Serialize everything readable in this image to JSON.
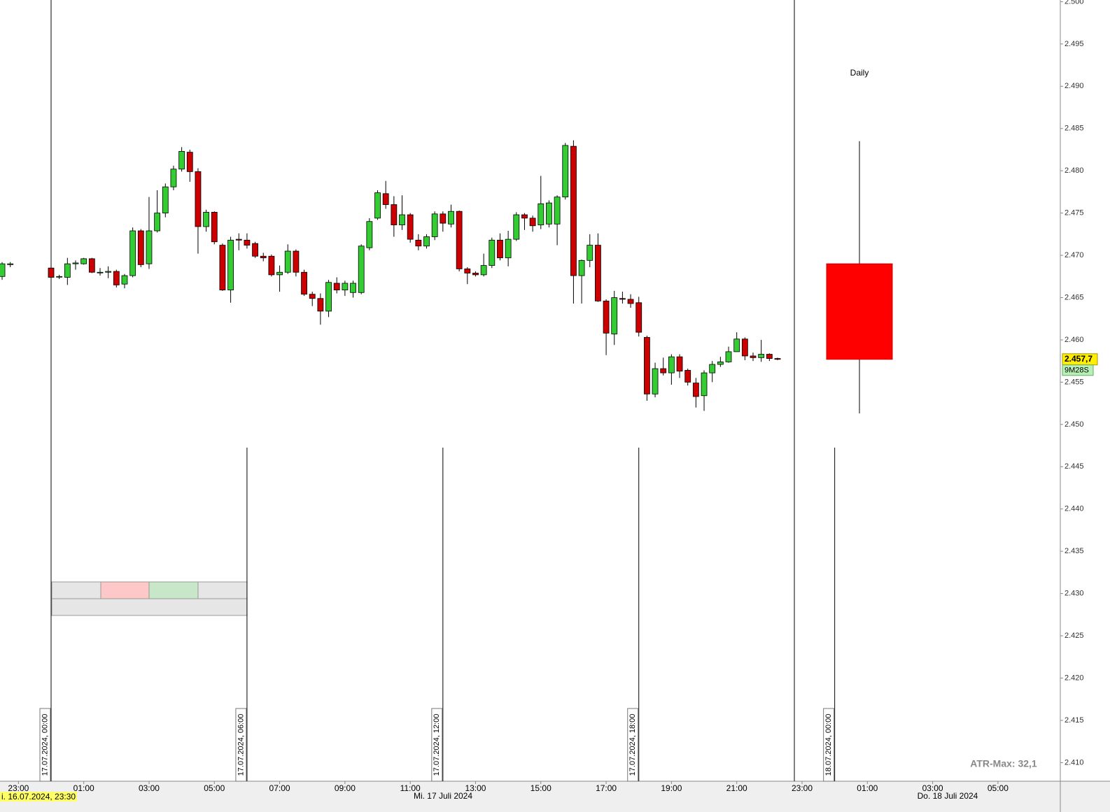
{
  "chart_data": {
    "type": "candlestick",
    "x": [
      -1.5,
      -1.25,
      0,
      0.25,
      0.5,
      0.75,
      1,
      1.25,
      1.5,
      1.75,
      2,
      2.25,
      2.5,
      2.75,
      3,
      3.25,
      3.5,
      3.75,
      4,
      4.25,
      4.5,
      4.75,
      5,
      5.25,
      5.5,
      5.75,
      6,
      6.25,
      6.5,
      6.75,
      7,
      7.25,
      7.5,
      7.75,
      8,
      8.25,
      8.5,
      8.75,
      9,
      9.25,
      9.5,
      9.75,
      10,
      10.25,
      10.5,
      10.75,
      11,
      11.25,
      11.5,
      11.75,
      12,
      12.25,
      12.5,
      12.75,
      13,
      13.25,
      13.5,
      13.75,
      14,
      14.25,
      14.5,
      14.75,
      15,
      15.25,
      15.5,
      15.75,
      16,
      16.25,
      16.5,
      16.75,
      17,
      17.25,
      17.5,
      17.75,
      18,
      18.25,
      18.5,
      18.75,
      19,
      19.25,
      19.5,
      19.75,
      20,
      20.25,
      20.5,
      20.75,
      21,
      21.25,
      21.5,
      21.75,
      22,
      22.25
    ],
    "open": [
      2.4675,
      2.4689,
      2.4685,
      2.4675,
      2.4674,
      2.469,
      2.469,
      2.4696,
      2.468,
      2.468,
      2.4681,
      2.4666,
      2.4676,
      2.4729,
      2.469,
      2.4729,
      2.475,
      2.4781,
      2.4802,
      2.4822,
      2.4799,
      2.4734,
      2.4751,
      2.4712,
      2.4659,
      2.4719,
      2.4718,
      2.4714,
      2.4699,
      2.4699,
      2.4677,
      2.468,
      2.4705,
      2.468,
      2.4654,
      2.4649,
      2.4634,
      2.4667,
      2.4659,
      2.4656,
      2.4656,
      2.4709,
      2.4744,
      2.4773,
      2.476,
      2.4736,
      2.4748,
      2.4718,
      2.4711,
      2.4722,
      2.4749,
      2.4737,
      2.4752,
      2.4684,
      2.4679,
      2.4677,
      2.4688,
      2.4718,
      2.4697,
      2.4719,
      2.4748,
      2.4744,
      2.4736,
      2.4737,
      2.4737,
      2.4769,
      2.4829,
      2.4676,
      2.4694,
      2.4712,
      2.4646,
      2.4607,
      2.4649,
      2.4648,
      2.4644,
      2.4603,
      2.4536,
      2.4566,
      2.4561,
      2.458,
      2.4564,
      2.4549,
      2.4534,
      2.4561,
      2.4571,
      2.4574,
      2.4586,
      2.4601,
      2.4581,
      2.4579,
      2.4583,
      2.4578
    ],
    "high": [
      2.4692,
      2.4692,
      2.4687,
      2.4677,
      2.4697,
      2.4694,
      2.4697,
      2.4697,
      2.4685,
      2.4687,
      2.4683,
      2.4678,
      2.4733,
      2.4731,
      2.4769,
      2.4777,
      2.4785,
      2.4806,
      2.4828,
      2.4825,
      2.4803,
      2.4754,
      2.4752,
      2.4714,
      2.4722,
      2.4726,
      2.4726,
      2.4716,
      2.4703,
      2.4701,
      2.4688,
      2.4713,
      2.4707,
      2.4683,
      2.4657,
      2.4655,
      2.4671,
      2.4674,
      2.467,
      2.467,
      2.4713,
      2.4744,
      2.4777,
      2.4788,
      2.477,
      2.4771,
      2.475,
      2.4725,
      2.4725,
      2.4752,
      2.4752,
      2.476,
      2.4753,
      2.4686,
      2.4681,
      2.4702,
      2.4721,
      2.4726,
      2.4729,
      2.4751,
      2.475,
      2.4747,
      2.4794,
      2.4765,
      2.4771,
      2.4833,
      2.4836,
      2.4695,
      2.4725,
      2.4726,
      2.4648,
      2.4658,
      2.4657,
      2.4654,
      2.4651,
      2.4605,
      2.4573,
      2.4579,
      2.4583,
      2.4583,
      2.4566,
      2.4555,
      2.4564,
      2.4575,
      2.458,
      2.4592,
      2.4609,
      2.4603,
      2.4585,
      2.46,
      2.4584,
      2.4579
    ],
    "low": [
      2.4671,
      2.4686,
      2.4672,
      2.4672,
      2.4665,
      2.4683,
      2.4689,
      2.4679,
      2.4676,
      2.4673,
      2.4662,
      2.4661,
      2.4674,
      2.4686,
      2.4684,
      2.4727,
      2.4745,
      2.4777,
      2.4799,
      2.4787,
      2.4702,
      2.4728,
      2.4713,
      2.4658,
      2.4644,
      2.4706,
      2.4708,
      2.4697,
      2.4693,
      2.4675,
      2.4657,
      2.4678,
      2.4675,
      2.4652,
      2.464,
      2.4618,
      2.4627,
      2.4655,
      2.4652,
      2.465,
      2.4654,
      2.4706,
      2.4742,
      2.4755,
      2.4722,
      2.473,
      2.4715,
      2.4706,
      2.4708,
      2.4718,
      2.4728,
      2.4733,
      2.4681,
      2.4666,
      2.4675,
      2.4675,
      2.4685,
      2.4694,
      2.4687,
      2.4717,
      2.473,
      2.4728,
      2.4731,
      2.4733,
      2.4712,
      2.4766,
      2.4643,
      2.4643,
      2.4686,
      2.4645,
      2.4582,
      2.4594,
      2.4643,
      2.4638,
      2.4604,
      2.4528,
      2.4532,
      2.4558,
      2.4547,
      2.4555,
      2.4546,
      2.452,
      2.4516,
      2.455,
      2.4568,
      2.4573,
      2.4586,
      2.4576,
      2.4575,
      2.4574,
      2.4575,
      2.4576
    ],
    "close": [
      2.469,
      2.469,
      2.4674,
      2.4675,
      2.469,
      2.4691,
      2.4696,
      2.468,
      2.468,
      2.4681,
      2.4665,
      2.4676,
      2.4729,
      2.4689,
      2.4729,
      2.475,
      2.4781,
      2.4802,
      2.4823,
      2.4799,
      2.4734,
      2.4751,
      2.4716,
      2.4659,
      2.4718,
      2.4718,
      2.4712,
      2.4699,
      2.4697,
      2.4677,
      2.468,
      2.4705,
      2.468,
      2.4654,
      2.4649,
      2.4634,
      2.4668,
      2.4659,
      2.4667,
      2.4667,
      2.4711,
      2.474,
      2.4774,
      2.476,
      2.4736,
      2.4748,
      2.4719,
      2.4711,
      2.4722,
      2.4749,
      2.4738,
      2.4752,
      2.4684,
      2.4679,
      2.4677,
      2.4688,
      2.4718,
      2.4697,
      2.4719,
      2.4748,
      2.4744,
      2.4735,
      2.4761,
      2.4762,
      2.4769,
      2.483,
      2.4676,
      2.4694,
      2.4712,
      2.4646,
      2.4608,
      2.465,
      2.4648,
      2.4643,
      2.4609,
      2.4536,
      2.4566,
      2.4561,
      2.458,
      2.4563,
      2.455,
      2.4533,
      2.4561,
      2.4571,
      2.4574,
      2.4586,
      2.4601,
      2.4581,
      2.4579,
      2.4583,
      2.4578,
      2.4577
    ],
    "up_color": "#33cc33",
    "down_color": "#cc0000",
    "xlim": [
      -1.565,
      30.91
    ],
    "ylim": [
      2.4078,
      2.5002
    ],
    "xticks": [
      {
        "value": -1,
        "label": "23:00"
      },
      {
        "value": 1,
        "label": "01:00"
      },
      {
        "value": 3,
        "label": "03:00"
      },
      {
        "value": 5,
        "label": "05:00"
      },
      {
        "value": 7,
        "label": "07:00"
      },
      {
        "value": 9,
        "label": "09:00"
      },
      {
        "value": 11,
        "label": "11:00"
      },
      {
        "value": 13,
        "label": "13:00"
      },
      {
        "value": 15,
        "label": "15:00"
      },
      {
        "value": 17,
        "label": "17:00"
      },
      {
        "value": 19,
        "label": "19:00"
      },
      {
        "value": 21,
        "label": "21:00"
      },
      {
        "value": 23,
        "label": "23:00"
      },
      {
        "value": 25,
        "label": "01:00"
      },
      {
        "value": 27,
        "label": "03:00"
      },
      {
        "value": 29,
        "label": "05:00"
      }
    ],
    "yticks": [
      {
        "value": 2.41,
        "label": "2.410"
      },
      {
        "value": 2.415,
        "label": "2.415"
      },
      {
        "value": 2.42,
        "label": "2.420"
      },
      {
        "value": 2.425,
        "label": "2.425"
      },
      {
        "value": 2.43,
        "label": "2.430"
      },
      {
        "value": 2.435,
        "label": "2.435"
      },
      {
        "value": 2.44,
        "label": "2.440"
      },
      {
        "value": 2.445,
        "label": "2.445"
      },
      {
        "value": 2.45,
        "label": "2.450"
      },
      {
        "value": 2.455,
        "label": "2.455"
      },
      {
        "value": 2.46,
        "label": "2.460"
      },
      {
        "value": 2.465,
        "label": "2.465"
      },
      {
        "value": 2.47,
        "label": "2.470"
      },
      {
        "value": 2.475,
        "label": "2.475"
      },
      {
        "value": 2.48,
        "label": "2.480"
      },
      {
        "value": 2.485,
        "label": "2.485"
      },
      {
        "value": 2.49,
        "label": "2.490"
      },
      {
        "value": 2.495,
        "label": "2.495"
      },
      {
        "value": 2.5,
        "label": "2.500"
      }
    ],
    "separators": [
      {
        "value": 0,
        "label": "17.07.2024, 00:00"
      },
      {
        "value": 6,
        "label": "17.07.2024, 06:00"
      },
      {
        "value": 12,
        "label": "17.07.2024, 12:00"
      },
      {
        "value": 18,
        "label": "17.07.2024, 18:00"
      },
      {
        "value": 24,
        "label": "18.07.2024, 00:00"
      }
    ],
    "daily": {
      "label": "Daily",
      "open": 2.469,
      "high": 2.4835,
      "low": 2.4513,
      "close": 2.4577,
      "color": "#ff0000"
    },
    "last_price_label": "2.457,7",
    "timer_label": "9M28S",
    "cursor_date": "i. 16.07.2024, 23:30",
    "date_labels": [
      "Mi. 17 Juli 2024",
      "Do. 18 Juli 2024"
    ],
    "atr_label": "ATR-Max: 32,1"
  }
}
